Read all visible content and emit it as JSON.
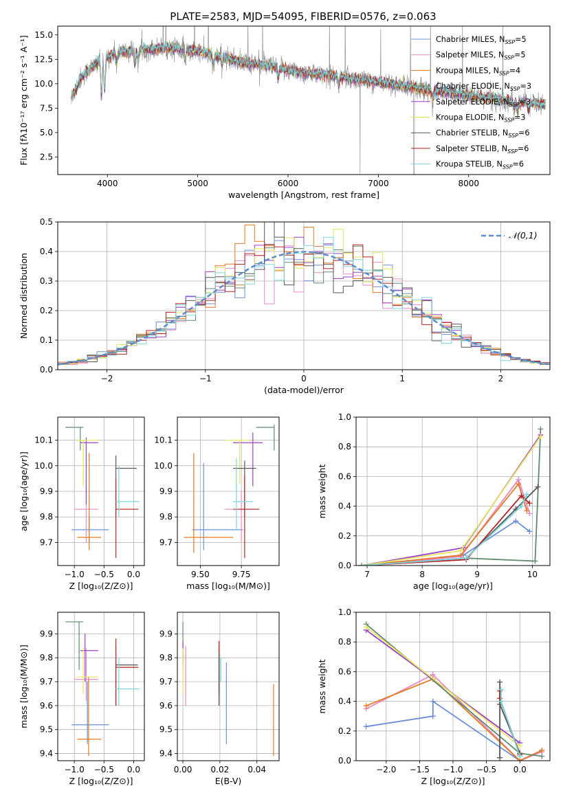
{
  "figure": {
    "title": "PLATE=2583, MJD=54095, FIBERID=0576, z=0.063"
  },
  "colors": {
    "chab_miles": "#6a8fd8",
    "salp_miles": "#e58ac6",
    "krou_miles": "#e8781e",
    "chab_elodie": "#5f8a6e",
    "salp_elodie": "#9b3fc9",
    "krou_elodie": "#e6e65a",
    "chab_stelib": "#555555",
    "salp_stelib": "#b22222",
    "krou_stelib": "#7ad6dc",
    "spectrum_data": "#888888",
    "normal_curve": "#5b8bd0"
  },
  "chart_data": [
    {
      "id": "spectrum",
      "type": "line",
      "xlabel": "wavelength [Angstrom, rest frame]",
      "ylabel": "Flux [fλ10⁻¹⁷ erg cm⁻² s⁻¹ A⁻¹]",
      "xlim": [
        3450,
        8900
      ],
      "ylim": [
        0.7,
        15.9
      ],
      "xticks": [
        4000,
        5000,
        6000,
        7000,
        8000
      ],
      "yticks": [
        2.5,
        5.0,
        7.5,
        10.0,
        12.5,
        15.0
      ],
      "xtick_labels": [
        "4000",
        "5000",
        "6000",
        "7000",
        "8000"
      ],
      "ytick_labels": [
        "2.5",
        "5.0",
        "7.5",
        "10.0",
        "12.5",
        "15.0"
      ],
      "continuum_knots": [
        [
          3600,
          8.5
        ],
        [
          3700,
          10.5
        ],
        [
          3800,
          11.5
        ],
        [
          3950,
          12.6
        ],
        [
          4100,
          13.2
        ],
        [
          4400,
          13.5
        ],
        [
          4700,
          13.7
        ],
        [
          5000,
          13.3
        ],
        [
          5200,
          12.9
        ],
        [
          5500,
          12.2
        ],
        [
          5800,
          11.8
        ],
        [
          6100,
          11.2
        ],
        [
          6500,
          10.8
        ],
        [
          6800,
          10.4
        ],
        [
          7200,
          9.9
        ],
        [
          7600,
          9.3
        ],
        [
          8000,
          8.8
        ],
        [
          8400,
          8.3
        ],
        [
          8800,
          7.9
        ]
      ],
      "absorption_lines": [
        [
          3934,
          4.2
        ],
        [
          3969,
          3.8
        ],
        [
          4102,
          1.2
        ],
        [
          4304,
          1.6
        ],
        [
          4340,
          1.2
        ],
        [
          4861,
          1.0
        ],
        [
          5175,
          1.4
        ],
        [
          5270,
          0.8
        ],
        [
          5890,
          1.2
        ],
        [
          6563,
          1.0
        ],
        [
          7600,
          1.0
        ],
        [
          8500,
          0.7
        ],
        [
          8542,
          0.9
        ],
        [
          8662,
          0.8
        ]
      ],
      "legend": [
        {
          "label": "Chabrier MILES, N_SSP=5",
          "color": "chab_miles"
        },
        {
          "label": "Salpeter MILES, N_SSP=5",
          "color": "salp_miles"
        },
        {
          "label": "Kroupa MILES, N_SSP=4",
          "color": "krou_miles"
        },
        {
          "label": "Chabrier ELODIE, N_SSP=3",
          "color": "chab_elodie"
        },
        {
          "label": "Salpeter ELODIE, N_SSP=3",
          "color": "salp_elodie"
        },
        {
          "label": "Kroupa ELODIE, N_SSP=3",
          "color": "krou_elodie"
        },
        {
          "label": "Chabrier STELIB, N_SSP=6",
          "color": "chab_stelib"
        },
        {
          "label": "Salpeter STELIB, N_SSP=6",
          "color": "salp_stelib"
        },
        {
          "label": "Kroupa STELIB, N_SSP=6",
          "color": "krou_stelib"
        }
      ],
      "legend_position": "top-right",
      "grid": false
    },
    {
      "id": "residuals",
      "type": "histogram",
      "xlabel": "(data-model)/error",
      "ylabel": "Normed distribution",
      "xlim": [
        -2.5,
        2.5
      ],
      "ylim": [
        0.0,
        0.5
      ],
      "xticks": [
        -2,
        -1,
        0,
        1,
        2
      ],
      "xtick_labels": [
        "−2",
        "−1",
        "0",
        "1",
        "2"
      ],
      "yticks": [
        0.0,
        0.1,
        0.2,
        0.3,
        0.4,
        0.5
      ],
      "ytick_labels": [
        "0.0",
        "0.1",
        "0.2",
        "0.3",
        "0.4",
        "0.5"
      ],
      "bin_width": 0.1,
      "curve_label": "𝒩(0,1)",
      "legend_position": "top-right",
      "grid": true
    },
    {
      "id": "z_age",
      "type": "scatter",
      "xlabel": "Z [log₁₀(Z/Z⊙)]",
      "ylabel": "age  [log₁₀(age/yr)]",
      "xlim": [
        -1.28,
        0.18
      ],
      "ylim": [
        9.61,
        10.19
      ],
      "xticks": [
        -1.0,
        -0.5,
        0.0
      ],
      "xtick_labels": [
        "−1.0",
        "−0.5",
        "0.0"
      ],
      "yticks": [
        9.7,
        9.8,
        9.9,
        10.0,
        10.1
      ],
      "ytick_labels": [
        "9.7",
        "9.8",
        "9.9",
        "10.0",
        "10.1"
      ],
      "grid": true
    },
    {
      "id": "mass_age",
      "type": "scatter",
      "xlabel": "mass [log₁₀(M/M⊙)]",
      "ylabel": "",
      "xlim": [
        9.36,
        9.98
      ],
      "ylim": [
        9.61,
        10.19
      ],
      "xticks": [
        9.5,
        9.75
      ],
      "xtick_labels": [
        "9.50",
        "9.75"
      ],
      "yticks": [
        9.7,
        9.8,
        9.9,
        10.0,
        10.1
      ],
      "ytick_labels": [
        "9.7",
        "9.8",
        "9.9",
        "10.0",
        "10.1"
      ],
      "grid": true
    },
    {
      "id": "age_weight",
      "type": "line",
      "xlabel": "age  [log₁₀(age/yr)]",
      "ylabel": "mass weight",
      "xlim": [
        6.8,
        10.32
      ],
      "ylim": [
        0.0,
        1.0
      ],
      "xticks": [
        7,
        8,
        9,
        10
      ],
      "xtick_labels": [
        "7",
        "8",
        "9",
        "10"
      ],
      "yticks": [
        0.0,
        0.2,
        0.4,
        0.6,
        0.8,
        1.0
      ],
      "ytick_labels": [
        "0.0",
        "0.2",
        "0.4",
        "0.6",
        "0.8",
        "1.0"
      ],
      "series": [
        {
          "color": "chab_miles",
          "x": [
            6.9,
            8.75,
            9.7,
            9.95
          ],
          "y": [
            0.0,
            0.07,
            0.3,
            0.23
          ]
        },
        {
          "color": "salp_miles",
          "x": [
            6.9,
            8.7,
            9.75,
            9.95
          ],
          "y": [
            0.0,
            0.06,
            0.58,
            0.35
          ]
        },
        {
          "color": "krou_miles",
          "x": [
            6.9,
            8.7,
            9.75,
            9.9
          ],
          "y": [
            0.0,
            0.07,
            0.55,
            0.37
          ]
        },
        {
          "color": "chab_elodie",
          "x": [
            8.8,
            10.05,
            10.15
          ],
          "y": [
            0.05,
            0.03,
            0.92
          ]
        },
        {
          "color": "salp_elodie",
          "x": [
            6.9,
            8.75,
            10.15
          ],
          "y": [
            0.0,
            0.12,
            0.88
          ]
        },
        {
          "color": "krou_elodie",
          "x": [
            6.9,
            8.7,
            10.15
          ],
          "y": [
            0.0,
            0.1,
            0.87
          ]
        },
        {
          "color": "chab_stelib",
          "x": [
            6.9,
            8.8,
            9.7,
            10.1
          ],
          "y": [
            0.0,
            0.05,
            0.38,
            0.53
          ]
        },
        {
          "color": "salp_stelib",
          "x": [
            6.9,
            8.8,
            9.8,
            9.95
          ],
          "y": [
            0.0,
            0.04,
            0.47,
            0.42
          ]
        },
        {
          "color": "krou_stelib",
          "x": [
            6.9,
            8.8,
            9.8,
            9.9
          ],
          "y": [
            0.0,
            0.05,
            0.4,
            0.48
          ]
        }
      ],
      "grid": true
    },
    {
      "id": "z_mass",
      "type": "scatter",
      "xlabel": "Z [log₁₀(Z/Z⊙)]",
      "ylabel": "mass [log₁₀(M/M⊙)]",
      "xlim": [
        -1.28,
        0.18
      ],
      "ylim": [
        9.37,
        9.99
      ],
      "xticks": [
        -1.0,
        -0.5,
        0.0
      ],
      "xtick_labels": [
        "−1.0",
        "−0.5",
        "0.0"
      ],
      "yticks": [
        9.4,
        9.5,
        9.6,
        9.7,
        9.8,
        9.9
      ],
      "ytick_labels": [
        "9.4",
        "9.5",
        "9.6",
        "9.7",
        "9.8",
        "9.9"
      ],
      "grid": true
    },
    {
      "id": "ebv_mass",
      "type": "scatter",
      "xlabel": "E(B-V)",
      "ylabel": "",
      "xlim": [
        -0.003,
        0.052
      ],
      "ylim": [
        9.37,
        9.99
      ],
      "xticks": [
        0.0,
        0.02,
        0.04
      ],
      "xtick_labels": [
        "0.00",
        "0.02",
        "0.04"
      ],
      "yticks": [
        9.4,
        9.5,
        9.6,
        9.7,
        9.8,
        9.9
      ],
      "ytick_labels": [
        "9.4",
        "9.5",
        "9.6",
        "9.7",
        "9.8",
        "9.9"
      ],
      "grid": true
    },
    {
      "id": "z_weight",
      "type": "line",
      "xlabel": "Z [log₁₀(Z/Z⊙)]",
      "ylabel": "mass weight",
      "xlim": [
        -2.45,
        0.45
      ],
      "ylim": [
        0.0,
        1.0
      ],
      "xticks": [
        -2.0,
        -1.5,
        -1.0,
        -0.5,
        0.0
      ],
      "xtick_labels": [
        "−2.0",
        "−1.5",
        "−1.0",
        "−0.5",
        "0.0"
      ],
      "yticks": [
        0.0,
        0.2,
        0.4,
        0.6,
        0.8,
        1.0
      ],
      "ytick_labels": [
        "0.0",
        "0.2",
        "0.4",
        "0.6",
        "0.8",
        "1.0"
      ],
      "series": [
        {
          "color": "chab_miles",
          "x": [
            -2.3,
            -1.3,
            -1.3,
            0.0,
            0.33
          ],
          "y": [
            0.23,
            0.3,
            0.4,
            0.0,
            0.07
          ]
        },
        {
          "color": "salp_miles",
          "x": [
            -2.3,
            -1.3,
            0.0,
            0.33
          ],
          "y": [
            0.35,
            0.58,
            0.0,
            0.06
          ]
        },
        {
          "color": "krou_miles",
          "x": [
            -2.3,
            -1.3,
            0.0,
            0.33
          ],
          "y": [
            0.37,
            0.55,
            0.0,
            0.07
          ]
        },
        {
          "color": "chab_elodie",
          "x": [
            -2.3,
            0.0,
            0.33
          ],
          "y": [
            0.92,
            0.05,
            0.03
          ]
        },
        {
          "color": "salp_elodie",
          "x": [
            -2.3,
            0.0
          ],
          "y": [
            0.88,
            0.12
          ]
        },
        {
          "color": "krou_elodie",
          "x": [
            -2.3,
            0.0
          ],
          "y": [
            0.9,
            0.1
          ]
        },
        {
          "color": "chab_stelib",
          "x": [
            -0.3,
            -0.3,
            -0.3,
            0.0
          ],
          "y": [
            0.53,
            0.02,
            0.38,
            0.05
          ]
        },
        {
          "color": "salp_stelib",
          "x": [
            -0.3,
            -0.3,
            0.0
          ],
          "y": [
            0.47,
            0.42,
            0.04
          ]
        },
        {
          "color": "krou_stelib",
          "x": [
            -0.28,
            -0.28,
            0.0
          ],
          "y": [
            0.48,
            0.4,
            0.03
          ]
        }
      ],
      "grid": true
    }
  ]
}
